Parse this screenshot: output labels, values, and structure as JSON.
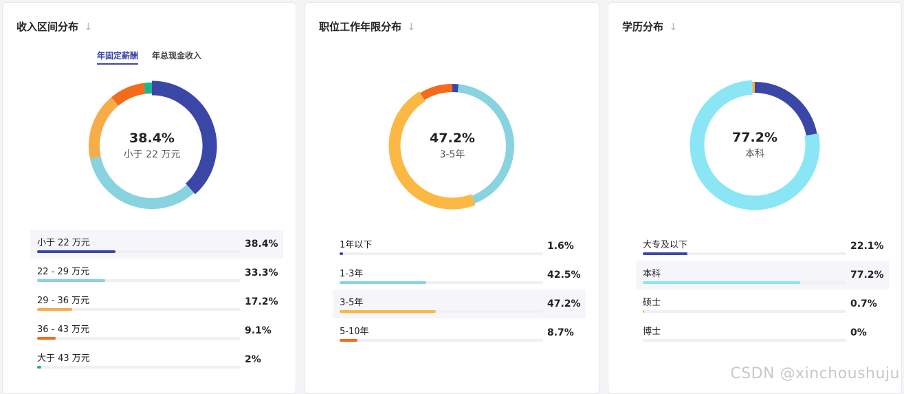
{
  "cards": [
    {
      "title": "收入区间分布",
      "tabs": [
        "年固定薪酬",
        "年总现金收入"
      ],
      "center": {
        "value": "38.4%",
        "label": "小于 22 万元"
      },
      "rows": [
        {
          "label": "小于 22 万元",
          "percent": "38.4%",
          "value": 38.4,
          "color": "#3b47a6"
        },
        {
          "label": "22 - 29 万元",
          "percent": "33.3%",
          "value": 33.3,
          "color": "#88d3df"
        },
        {
          "label": "29 - 36 万元",
          "percent": "17.2%",
          "value": 17.2,
          "color": "#f6ad49"
        },
        {
          "label": "36 - 43 万元",
          "percent": "9.1%",
          "value": 9.1,
          "color": "#f46b1b"
        },
        {
          "label": "大于 43 万元",
          "percent": "2%",
          "value": 2,
          "color": "#17b890"
        }
      ],
      "highlight": 0
    },
    {
      "title": "职位工作年限分布",
      "center": {
        "value": "47.2%",
        "label": "3-5年"
      },
      "rows": [
        {
          "label": "1年以下",
          "percent": "1.6%",
          "value": 1.6,
          "color": "#3b47a6"
        },
        {
          "label": "1-3年",
          "percent": "42.5%",
          "value": 42.5,
          "color": "#88d3df"
        },
        {
          "label": "3-5年",
          "percent": "47.2%",
          "value": 47.2,
          "color": "#fbb843"
        },
        {
          "label": "5-10年",
          "percent": "8.7%",
          "value": 8.7,
          "color": "#f46b1b"
        }
      ],
      "highlight": 2
    },
    {
      "title": "学历分布",
      "center": {
        "value": "77.2%",
        "label": "本科"
      },
      "rows": [
        {
          "label": "大专及以下",
          "percent": "22.1%",
          "value": 22.1,
          "color": "#3b47a6"
        },
        {
          "label": "本科",
          "percent": "77.2%",
          "value": 77.2,
          "color": "#8ae6f5"
        },
        {
          "label": "硕士",
          "percent": "0.7%",
          "value": 0.7,
          "color": "#f6ad49"
        },
        {
          "label": "博士",
          "percent": "0%",
          "value": 0,
          "color": "#f46b1b"
        }
      ],
      "highlight": 1
    }
  ],
  "watermark": "CSDN @xinchoushuju",
  "icons": {
    "sort": "arrow-down-icon"
  }
}
